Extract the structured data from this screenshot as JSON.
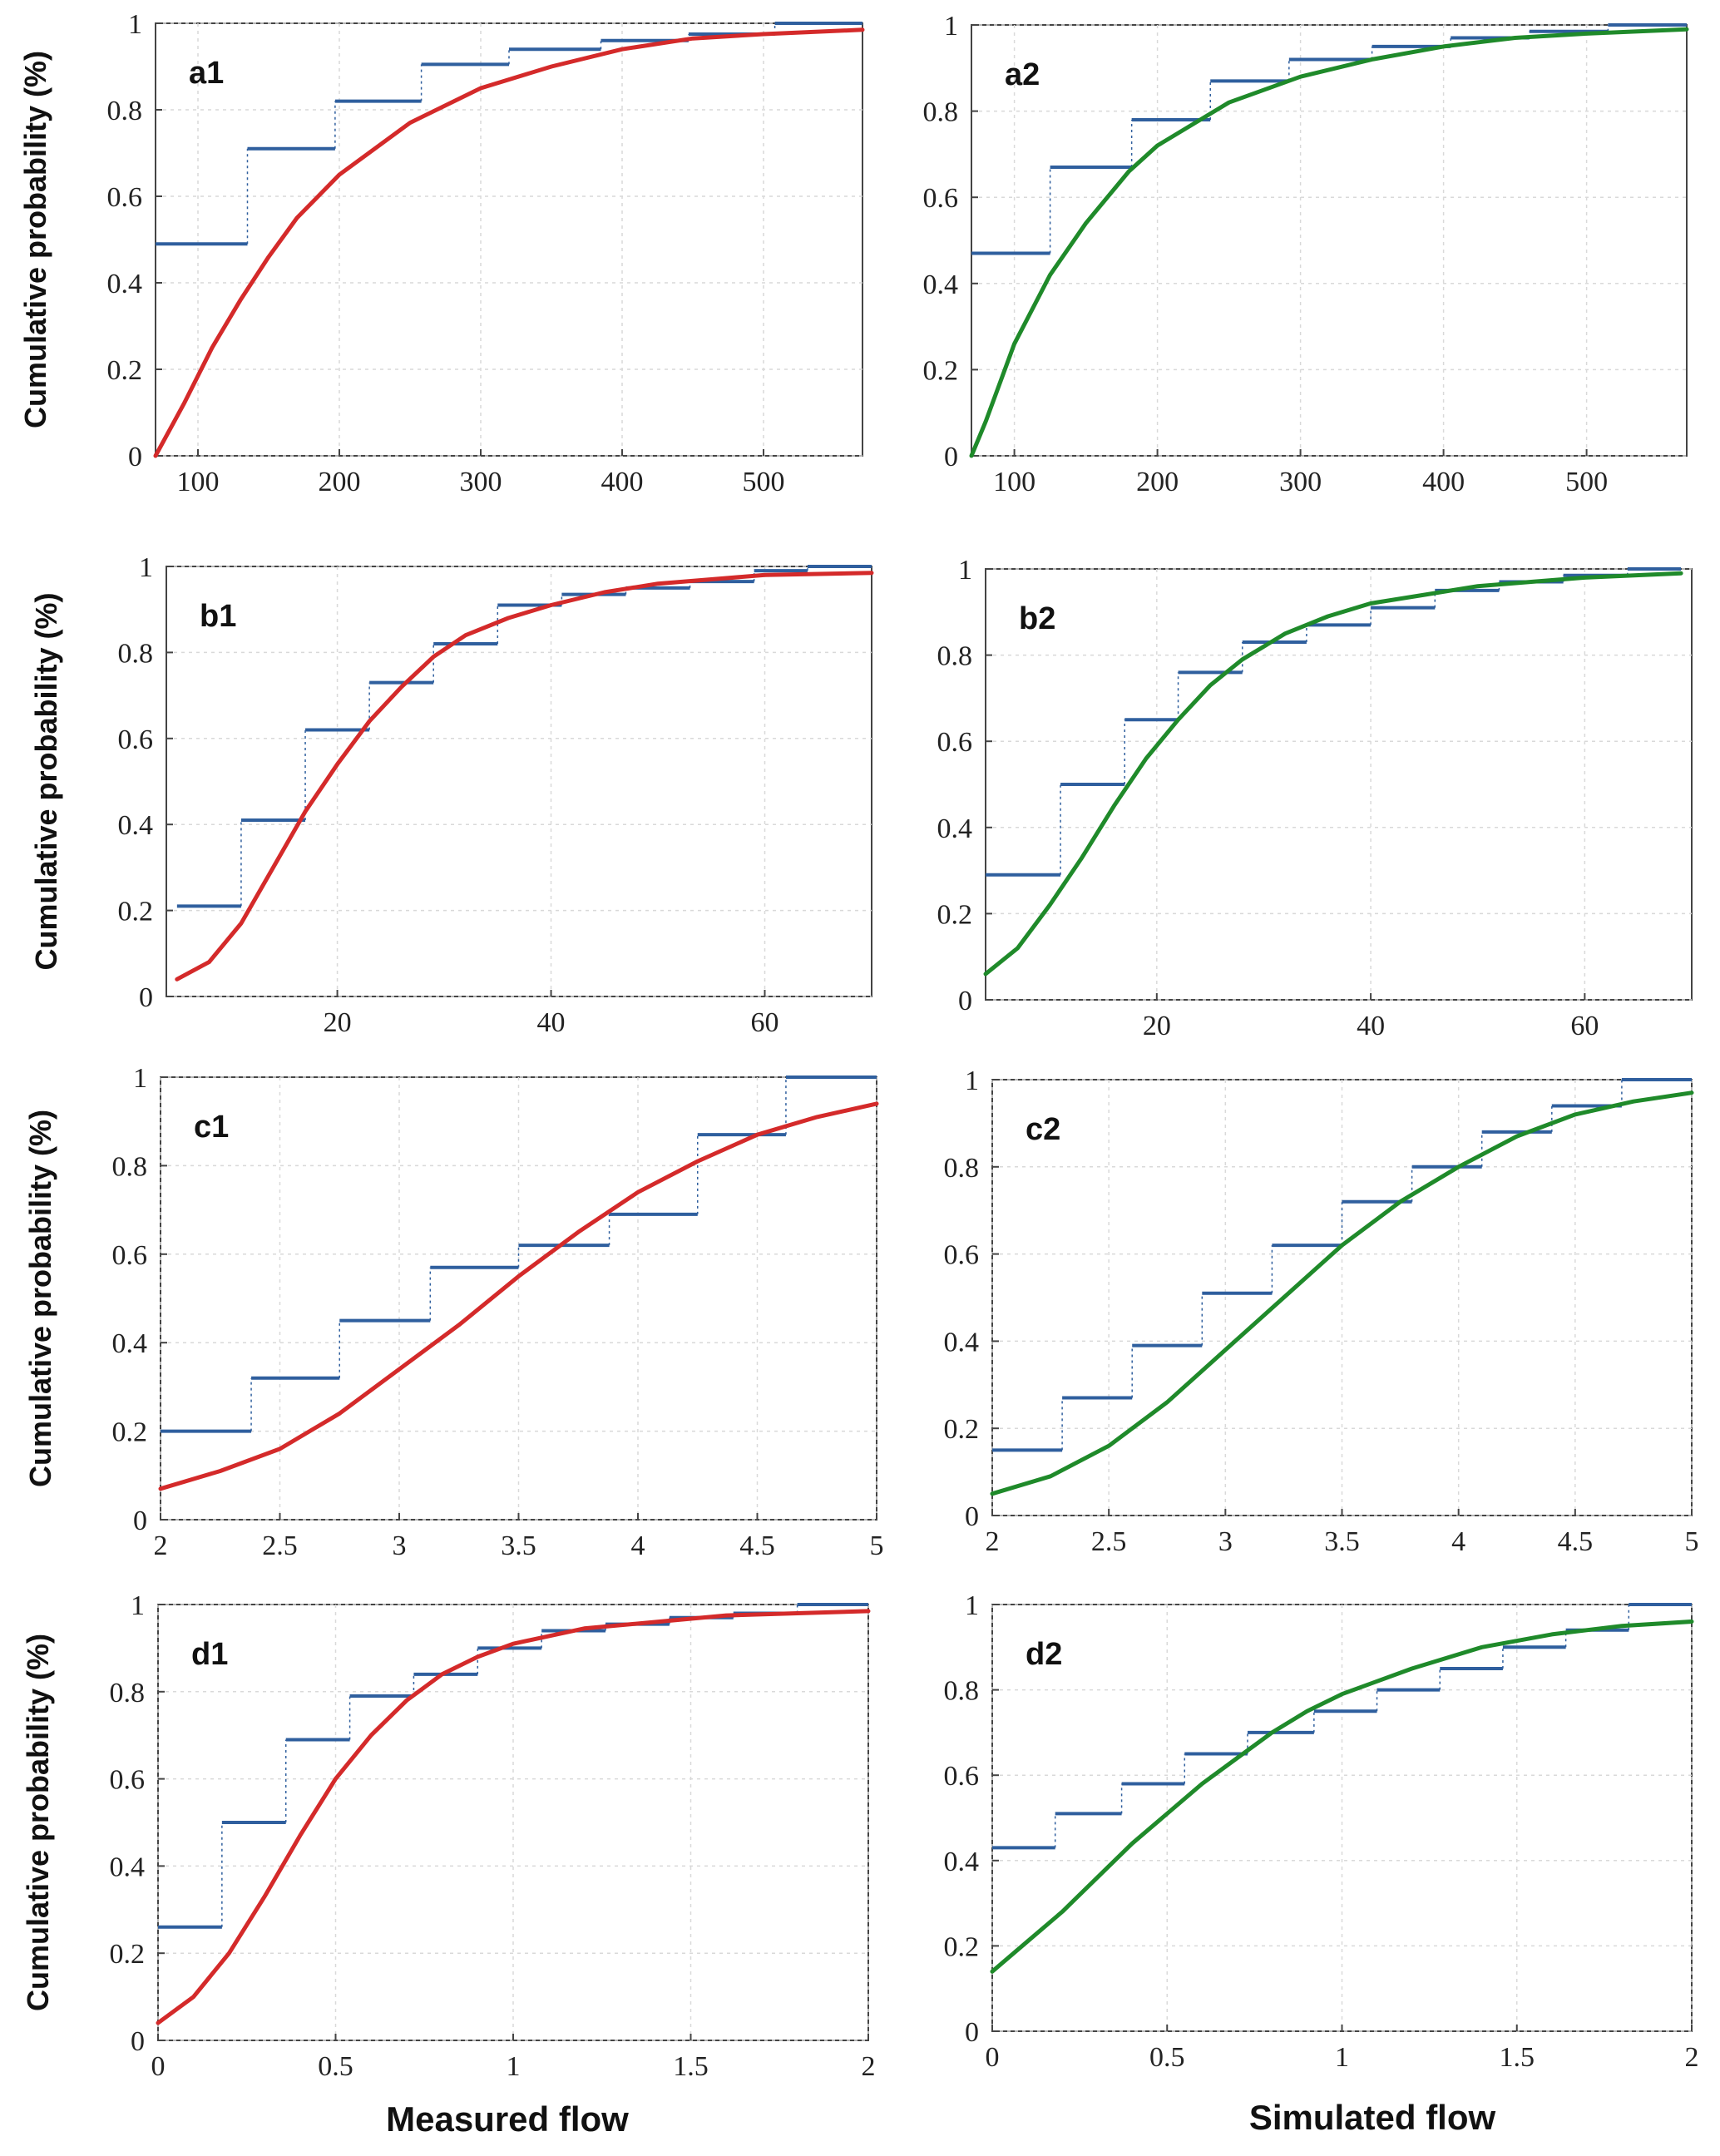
{
  "colors": {
    "empirical": "#2f5f9e",
    "fit_measured": "#d42a2a",
    "fit_simulated": "#1f8a2a",
    "grid": "#d9d9d9",
    "frame": "#444444"
  },
  "x_titles": {
    "left": "Measured flow",
    "right": "Simulated flow"
  },
  "chart_data": [
    {
      "id": "a1",
      "type": "line",
      "label": "a1",
      "ylabel": "Cumulative probability (%)",
      "xlabel": "Measured flow",
      "xlim": [
        70,
        570
      ],
      "ylim": [
        0,
        1
      ],
      "xticks": [
        100,
        200,
        300,
        400,
        500
      ],
      "xtick_labels": [
        "100",
        "200",
        "300",
        "400",
        "500"
      ],
      "yticks": [
        0,
        0.2,
        0.4,
        0.6,
        0.8,
        1
      ],
      "ytick_labels": [
        "0",
        "0.2",
        "0.4",
        "0.6",
        "0.8",
        "1"
      ],
      "fit": "measured",
      "fit_points": [
        [
          70,
          0
        ],
        [
          90,
          0.12
        ],
        [
          110,
          0.25
        ],
        [
          130,
          0.36
        ],
        [
          150,
          0.46
        ],
        [
          170,
          0.55
        ],
        [
          200,
          0.65
        ],
        [
          250,
          0.77
        ],
        [
          300,
          0.85
        ],
        [
          350,
          0.9
        ],
        [
          400,
          0.94
        ],
        [
          450,
          0.965
        ],
        [
          500,
          0.975
        ],
        [
          570,
          0.985
        ]
      ],
      "steps": [
        [
          70,
          0.49
        ],
        [
          135,
          0.71
        ],
        [
          197,
          0.82
        ],
        [
          258,
          0.905
        ],
        [
          320,
          0.94
        ],
        [
          385,
          0.96
        ],
        [
          447,
          0.975
        ],
        [
          508,
          1.0
        ],
        [
          570,
          1.0
        ]
      ]
    },
    {
      "id": "a2",
      "type": "line",
      "label": "a2",
      "ylabel": "",
      "xlabel": "Simulated flow",
      "xlim": [
        70,
        570
      ],
      "ylim": [
        0,
        1
      ],
      "xticks": [
        100,
        200,
        300,
        400,
        500
      ],
      "xtick_labels": [
        "100",
        "200",
        "300",
        "400",
        "500"
      ],
      "yticks": [
        0,
        0.2,
        0.4,
        0.6,
        0.8,
        1
      ],
      "ytick_labels": [
        "0",
        "0.2",
        "0.4",
        "0.6",
        "0.8",
        "1"
      ],
      "fit": "simulated",
      "fit_points": [
        [
          70,
          0
        ],
        [
          80,
          0.08
        ],
        [
          100,
          0.26
        ],
        [
          125,
          0.42
        ],
        [
          150,
          0.54
        ],
        [
          180,
          0.66
        ],
        [
          200,
          0.72
        ],
        [
          250,
          0.82
        ],
        [
          300,
          0.88
        ],
        [
          350,
          0.92
        ],
        [
          400,
          0.95
        ],
        [
          450,
          0.97
        ],
        [
          500,
          0.98
        ],
        [
          570,
          0.99
        ]
      ],
      "steps": [
        [
          70,
          0.47
        ],
        [
          125,
          0.67
        ],
        [
          182,
          0.78
        ],
        [
          237,
          0.87
        ],
        [
          292,
          0.92
        ],
        [
          350,
          0.95
        ],
        [
          405,
          0.97
        ],
        [
          460,
          0.985
        ],
        [
          515,
          1.0
        ],
        [
          570,
          1.0
        ]
      ]
    },
    {
      "id": "b1",
      "type": "line",
      "label": "b1",
      "ylabel": "Cumulative probability (%)",
      "xlabel": "Measured flow",
      "xlim": [
        4,
        70
      ],
      "ylim": [
        0,
        1
      ],
      "xticks": [
        20,
        40,
        60
      ],
      "xtick_labels": [
        "20",
        "40",
        "60"
      ],
      "yticks": [
        0,
        0.2,
        0.4,
        0.6,
        0.8,
        1
      ],
      "ytick_labels": [
        "0",
        "0.2",
        "0.4",
        "0.6",
        "0.8",
        "1"
      ],
      "fit": "measured",
      "fit_points": [
        [
          5,
          0.04
        ],
        [
          8,
          0.08
        ],
        [
          11,
          0.17
        ],
        [
          14,
          0.3
        ],
        [
          17,
          0.43
        ],
        [
          20,
          0.54
        ],
        [
          23,
          0.64
        ],
        [
          26,
          0.72
        ],
        [
          29,
          0.79
        ],
        [
          32,
          0.84
        ],
        [
          36,
          0.88
        ],
        [
          40,
          0.91
        ],
        [
          45,
          0.94
        ],
        [
          50,
          0.96
        ],
        [
          55,
          0.97
        ],
        [
          60,
          0.98
        ],
        [
          70,
          0.985
        ]
      ],
      "steps": [
        [
          5,
          0.21
        ],
        [
          11,
          0.41
        ],
        [
          17,
          0.62
        ],
        [
          23,
          0.73
        ],
        [
          29,
          0.82
        ],
        [
          35,
          0.91
        ],
        [
          41,
          0.935
        ],
        [
          47,
          0.95
        ],
        [
          53,
          0.965
        ],
        [
          59,
          0.99
        ],
        [
          64,
          1.0
        ],
        [
          70,
          1.0
        ]
      ]
    },
    {
      "id": "b2",
      "type": "line",
      "label": "b2",
      "ylabel": "",
      "xlabel": "Simulated flow",
      "xlim": [
        4,
        70
      ],
      "ylim": [
        0,
        1
      ],
      "xticks": [
        20,
        40,
        60
      ],
      "xtick_labels": [
        "20",
        "40",
        "60"
      ],
      "yticks": [
        0,
        0.2,
        0.4,
        0.6,
        0.8,
        1
      ],
      "ytick_labels": [
        "0",
        "0.2",
        "0.4",
        "0.6",
        "0.8",
        "1"
      ],
      "fit": "simulated",
      "fit_points": [
        [
          4,
          0.06
        ],
        [
          7,
          0.12
        ],
        [
          10,
          0.22
        ],
        [
          13,
          0.33
        ],
        [
          16,
          0.45
        ],
        [
          19,
          0.56
        ],
        [
          22,
          0.65
        ],
        [
          25,
          0.73
        ],
        [
          28,
          0.79
        ],
        [
          32,
          0.85
        ],
        [
          36,
          0.89
        ],
        [
          40,
          0.92
        ],
        [
          45,
          0.94
        ],
        [
          50,
          0.96
        ],
        [
          55,
          0.97
        ],
        [
          60,
          0.98
        ],
        [
          69,
          0.99
        ]
      ],
      "steps": [
        [
          4,
          0.29
        ],
        [
          11,
          0.5
        ],
        [
          17,
          0.65
        ],
        [
          22,
          0.76
        ],
        [
          28,
          0.83
        ],
        [
          34,
          0.87
        ],
        [
          40,
          0.91
        ],
        [
          46,
          0.95
        ],
        [
          52,
          0.97
        ],
        [
          58,
          0.985
        ],
        [
          64,
          1.0
        ],
        [
          69,
          1.0
        ]
      ]
    },
    {
      "id": "c1",
      "type": "line",
      "label": "c1",
      "ylabel": "Cumulative probability (%)",
      "xlabel": "Measured flow",
      "xlim": [
        2,
        5
      ],
      "ylim": [
        0,
        1
      ],
      "xticks": [
        2,
        2.5,
        3,
        3.5,
        4,
        4.5,
        5
      ],
      "xtick_labels": [
        "2",
        "2.5",
        "3",
        "3.5",
        "4",
        "4.5",
        "5"
      ],
      "yticks": [
        0,
        0.2,
        0.4,
        0.6,
        0.8,
        1
      ],
      "ytick_labels": [
        "0",
        "0.2",
        "0.4",
        "0.6",
        "0.8",
        "1"
      ],
      "fit": "measured",
      "fit_points": [
        [
          2,
          0.07
        ],
        [
          2.25,
          0.11
        ],
        [
          2.5,
          0.16
        ],
        [
          2.75,
          0.24
        ],
        [
          3,
          0.34
        ],
        [
          3.25,
          0.44
        ],
        [
          3.5,
          0.55
        ],
        [
          3.75,
          0.65
        ],
        [
          4,
          0.74
        ],
        [
          4.25,
          0.81
        ],
        [
          4.5,
          0.87
        ],
        [
          4.75,
          0.91
        ],
        [
          5,
          0.94
        ]
      ],
      "steps": [
        [
          2,
          0.2
        ],
        [
          2.38,
          0.32
        ],
        [
          2.75,
          0.45
        ],
        [
          3.13,
          0.57
        ],
        [
          3.5,
          0.62
        ],
        [
          3.88,
          0.69
        ],
        [
          4.25,
          0.87
        ],
        [
          4.62,
          1.0
        ],
        [
          5,
          1.0
        ]
      ]
    },
    {
      "id": "c2",
      "type": "line",
      "label": "c2",
      "ylabel": "",
      "xlabel": "Simulated flow",
      "xlim": [
        2,
        5
      ],
      "ylim": [
        0,
        1
      ],
      "xticks": [
        2,
        2.5,
        3,
        3.5,
        4,
        4.5,
        5
      ],
      "xtick_labels": [
        "2",
        "2.5",
        "3",
        "3.5",
        "4",
        "4.5",
        "5"
      ],
      "yticks": [
        0,
        0.2,
        0.4,
        0.6,
        0.8,
        1
      ],
      "ytick_labels": [
        "0",
        "0.2",
        "0.4",
        "0.6",
        "0.8",
        "1"
      ],
      "fit": "simulated",
      "fit_points": [
        [
          2,
          0.05
        ],
        [
          2.25,
          0.09
        ],
        [
          2.5,
          0.16
        ],
        [
          2.75,
          0.26
        ],
        [
          3,
          0.38
        ],
        [
          3.25,
          0.5
        ],
        [
          3.5,
          0.62
        ],
        [
          3.75,
          0.72
        ],
        [
          4,
          0.8
        ],
        [
          4.25,
          0.87
        ],
        [
          4.5,
          0.92
        ],
        [
          4.75,
          0.95
        ],
        [
          5,
          0.97
        ]
      ],
      "steps": [
        [
          2,
          0.15
        ],
        [
          2.3,
          0.27
        ],
        [
          2.6,
          0.39
        ],
        [
          2.9,
          0.51
        ],
        [
          3.2,
          0.62
        ],
        [
          3.5,
          0.72
        ],
        [
          3.8,
          0.8
        ],
        [
          4.1,
          0.88
        ],
        [
          4.4,
          0.94
        ],
        [
          4.7,
          1.0
        ],
        [
          5,
          1.0
        ]
      ]
    },
    {
      "id": "d1",
      "type": "line",
      "label": "d1",
      "ylabel": "Cumulative probability (%)",
      "xlabel": "Measured flow",
      "xlim": [
        0,
        2
      ],
      "ylim": [
        0,
        1
      ],
      "xticks": [
        0,
        0.5,
        1,
        1.5,
        2
      ],
      "xtick_labels": [
        "0",
        "0.5",
        "1",
        "1.5",
        "2"
      ],
      "yticks": [
        0,
        0.2,
        0.4,
        0.6,
        0.8,
        1
      ],
      "ytick_labels": [
        "0",
        "0.2",
        "0.4",
        "0.6",
        "0.8",
        "1"
      ],
      "fit": "measured",
      "fit_points": [
        [
          0,
          0.04
        ],
        [
          0.1,
          0.1
        ],
        [
          0.2,
          0.2
        ],
        [
          0.3,
          0.33
        ],
        [
          0.4,
          0.47
        ],
        [
          0.5,
          0.6
        ],
        [
          0.6,
          0.7
        ],
        [
          0.7,
          0.78
        ],
        [
          0.8,
          0.84
        ],
        [
          0.9,
          0.88
        ],
        [
          1,
          0.91
        ],
        [
          1.2,
          0.945
        ],
        [
          1.4,
          0.96
        ],
        [
          1.6,
          0.975
        ],
        [
          1.8,
          0.98
        ],
        [
          2,
          0.985
        ]
      ],
      "steps": [
        [
          0,
          0.26
        ],
        [
          0.18,
          0.5
        ],
        [
          0.36,
          0.69
        ],
        [
          0.54,
          0.79
        ],
        [
          0.72,
          0.84
        ],
        [
          0.9,
          0.9
        ],
        [
          1.08,
          0.94
        ],
        [
          1.26,
          0.955
        ],
        [
          1.44,
          0.97
        ],
        [
          1.62,
          0.98
        ],
        [
          1.8,
          1.0
        ],
        [
          2,
          1.0
        ]
      ]
    },
    {
      "id": "d2",
      "type": "line",
      "label": "d2",
      "ylabel": "",
      "xlabel": "Simulated flow",
      "xlim": [
        0,
        2
      ],
      "ylim": [
        0,
        1
      ],
      "xticks": [
        0,
        0.5,
        1,
        1.5,
        2
      ],
      "xtick_labels": [
        "0",
        "0.5",
        "1",
        "1.5",
        "2"
      ],
      "yticks": [
        0,
        0.2,
        0.4,
        0.6,
        0.8,
        1
      ],
      "ytick_labels": [
        "0",
        "0.2",
        "0.4",
        "0.6",
        "0.8",
        "1"
      ],
      "fit": "simulated",
      "fit_points": [
        [
          0,
          0.14
        ],
        [
          0.1,
          0.21
        ],
        [
          0.2,
          0.28
        ],
        [
          0.3,
          0.36
        ],
        [
          0.4,
          0.44
        ],
        [
          0.5,
          0.51
        ],
        [
          0.6,
          0.58
        ],
        [
          0.7,
          0.64
        ],
        [
          0.8,
          0.7
        ],
        [
          0.9,
          0.75
        ],
        [
          1,
          0.79
        ],
        [
          1.2,
          0.85
        ],
        [
          1.4,
          0.9
        ],
        [
          1.6,
          0.93
        ],
        [
          1.8,
          0.95
        ],
        [
          2,
          0.96
        ]
      ],
      "steps": [
        [
          0,
          0.43
        ],
        [
          0.18,
          0.51
        ],
        [
          0.37,
          0.58
        ],
        [
          0.55,
          0.65
        ],
        [
          0.73,
          0.7
        ],
        [
          0.92,
          0.75
        ],
        [
          1.1,
          0.8
        ],
        [
          1.28,
          0.85
        ],
        [
          1.46,
          0.9
        ],
        [
          1.64,
          0.94
        ],
        [
          1.82,
          1.0
        ],
        [
          2,
          1.0
        ]
      ]
    }
  ]
}
